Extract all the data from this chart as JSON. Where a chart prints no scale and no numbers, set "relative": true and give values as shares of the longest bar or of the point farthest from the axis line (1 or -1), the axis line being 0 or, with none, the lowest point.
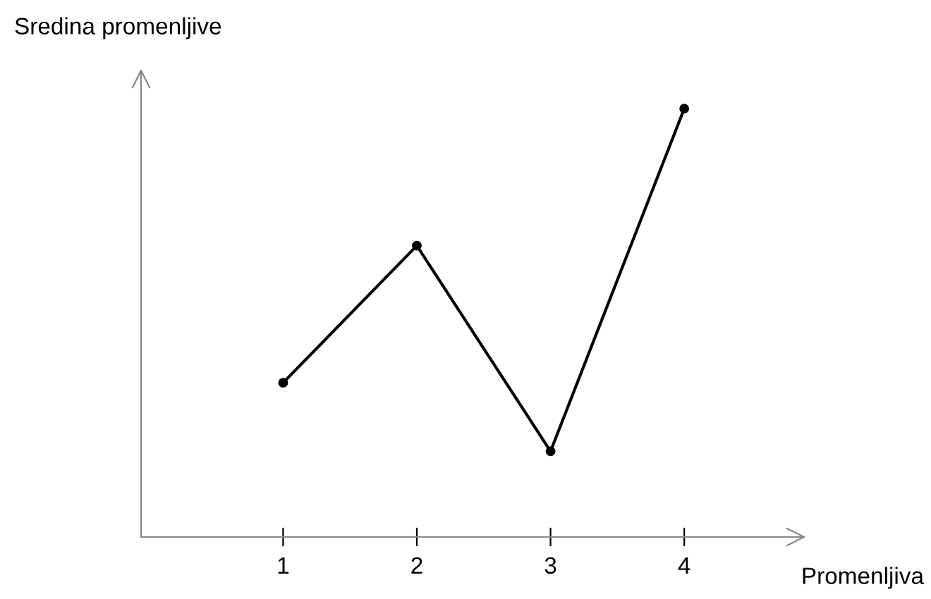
{
  "chart_data": {
    "type": "line",
    "relative": true,
    "xlabel": "Promenljiva",
    "ylabel": "Sredina promenljive",
    "categories": [
      "1",
      "2",
      "3",
      "4"
    ],
    "series": [
      {
        "color": "#000000",
        "values": [
          0.36,
          0.68,
          0.2,
          1.0
        ]
      }
    ],
    "marker": "circle",
    "line_style": "solid",
    "tick_labels": "x",
    "grid": false,
    "legend": false
  }
}
